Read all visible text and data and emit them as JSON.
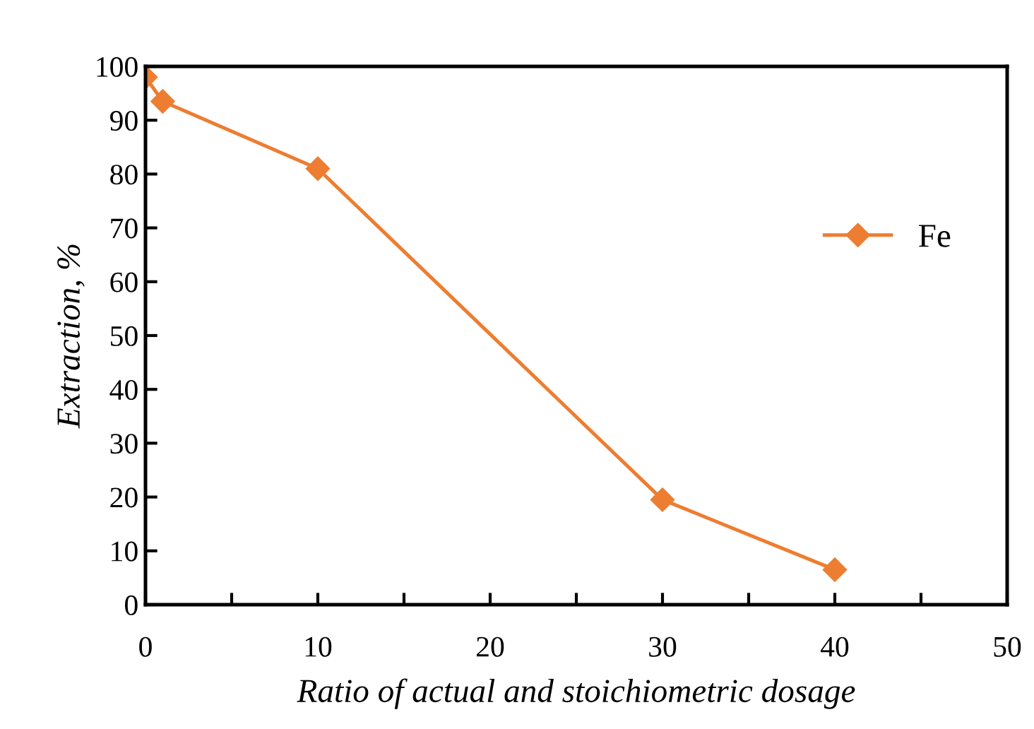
{
  "chart_data": {
    "type": "line",
    "xlabel": "Ratio of actual and stoichiometric dosage",
    "ylabel": "Extraction, %",
    "x": [
      0,
      1,
      10,
      30,
      40
    ],
    "series": [
      {
        "name": "Fe",
        "color": "#ed7d31",
        "values": [
          98,
          93.5,
          81,
          19.5,
          6.5
        ]
      }
    ],
    "xlim": [
      0,
      50
    ],
    "ylim": [
      0,
      100
    ],
    "xticks": [
      0,
      {
        "value": 5,
        "label": null
      },
      10,
      {
        "value": 15,
        "label": null
      },
      20,
      {
        "value": 25,
        "label": null
      },
      30,
      {
        "value": 35,
        "label": null
      },
      40,
      {
        "value": 45,
        "label": null
      },
      50
    ],
    "yticks": [
      0,
      10,
      20,
      30,
      40,
      50,
      60,
      70,
      80,
      90,
      100
    ],
    "marker": "diamond",
    "line_style": "solid",
    "grid": false,
    "legend": "right"
  }
}
